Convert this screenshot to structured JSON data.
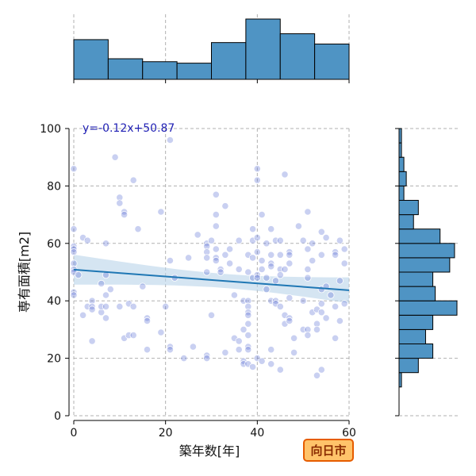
{
  "chart_data": {
    "type": "scatter",
    "xlabel": "築年数[年]",
    "ylabel": "専有面積[m2]",
    "xlim": [
      0,
      60
    ],
    "ylim": [
      0,
      100
    ],
    "xticks": [
      0,
      20,
      40,
      60
    ],
    "yticks": [
      0,
      20,
      40,
      60,
      80,
      100
    ],
    "grid": true,
    "regression": {
      "label": "y=-0.12x+50.87",
      "slope": -0.12,
      "intercept": 50.87
    },
    "badge": "向日市",
    "colors": {
      "point": "#5b6fd6",
      "regression": "#1f77b4",
      "ci_band": "#b9d3ea",
      "hist": "#4f94c4",
      "badge_fill": "#ffc36a",
      "badge_border": "#e65c00"
    },
    "points": [
      [
        0,
        86
      ],
      [
        0,
        65
      ],
      [
        0,
        59
      ],
      [
        0,
        58
      ],
      [
        0,
        57
      ],
      [
        0,
        53
      ],
      [
        0,
        51
      ],
      [
        0,
        50
      ],
      [
        0,
        43
      ],
      [
        0,
        42
      ],
      [
        2,
        62
      ],
      [
        2,
        35
      ],
      [
        3,
        61
      ],
      [
        3,
        38
      ],
      [
        4,
        40
      ],
      [
        4,
        38
      ],
      [
        4,
        37
      ],
      [
        4,
        26
      ],
      [
        6,
        46
      ],
      [
        6,
        36
      ],
      [
        6,
        38
      ],
      [
        7,
        60
      ],
      [
        7,
        49
      ],
      [
        7,
        42
      ],
      [
        7,
        38
      ],
      [
        7,
        34
      ],
      [
        9,
        90
      ],
      [
        10,
        76
      ],
      [
        10,
        74
      ],
      [
        10,
        38
      ],
      [
        11,
        71
      ],
      [
        11,
        70
      ],
      [
        11,
        27
      ],
      [
        12,
        39
      ],
      [
        12,
        28
      ],
      [
        13,
        82
      ],
      [
        13,
        38
      ],
      [
        13,
        28
      ],
      [
        14,
        65
      ],
      [
        16,
        34
      ],
      [
        16,
        33
      ],
      [
        16,
        23
      ],
      [
        19,
        71
      ],
      [
        19,
        29
      ],
      [
        20,
        38
      ],
      [
        21,
        96
      ],
      [
        21,
        54
      ],
      [
        21,
        24
      ],
      [
        21,
        23
      ],
      [
        24,
        20
      ],
      [
        26,
        24
      ],
      [
        29,
        60
      ],
      [
        29,
        59
      ],
      [
        29,
        57
      ],
      [
        29,
        55
      ],
      [
        29,
        50
      ],
      [
        29,
        21
      ],
      [
        29,
        20
      ],
      [
        30,
        61
      ],
      [
        30,
        35
      ],
      [
        31,
        77
      ],
      [
        31,
        70
      ],
      [
        31,
        66
      ],
      [
        31,
        58
      ],
      [
        31,
        55
      ],
      [
        31,
        54
      ],
      [
        32,
        51
      ],
      [
        32,
        50
      ],
      [
        33,
        73
      ],
      [
        33,
        56
      ],
      [
        33,
        22
      ],
      [
        34,
        53
      ],
      [
        35,
        27
      ],
      [
        36,
        61
      ],
      [
        36,
        51
      ],
      [
        36,
        26
      ],
      [
        36,
        23
      ],
      [
        37,
        40
      ],
      [
        37,
        30
      ],
      [
        37,
        19
      ],
      [
        37,
        18
      ],
      [
        38,
        56
      ],
      [
        38,
        50
      ],
      [
        38,
        40
      ],
      [
        38,
        38
      ],
      [
        38,
        36
      ],
      [
        38,
        35
      ],
      [
        38,
        32
      ],
      [
        38,
        28
      ],
      [
        38,
        24
      ],
      [
        38,
        23
      ],
      [
        38,
        18
      ],
      [
        39,
        65
      ],
      [
        39,
        61
      ],
      [
        39,
        55
      ],
      [
        39,
        48
      ],
      [
        39,
        17
      ],
      [
        40,
        86
      ],
      [
        40,
        82
      ],
      [
        40,
        62
      ],
      [
        40,
        57
      ],
      [
        40,
        49
      ],
      [
        40,
        48
      ],
      [
        40,
        20
      ],
      [
        41,
        70
      ],
      [
        41,
        54
      ],
      [
        41,
        51
      ],
      [
        41,
        19
      ],
      [
        42,
        60
      ],
      [
        42,
        48
      ],
      [
        43,
        65
      ],
      [
        43,
        56
      ],
      [
        43,
        53
      ],
      [
        43,
        52
      ],
      [
        43,
        40
      ],
      [
        43,
        23
      ],
      [
        43,
        18
      ],
      [
        44,
        61
      ],
      [
        44,
        40
      ],
      [
        44,
        39
      ],
      [
        45,
        61
      ],
      [
        45,
        56
      ],
      [
        45,
        51
      ],
      [
        45,
        49
      ],
      [
        45,
        38
      ],
      [
        45,
        16
      ],
      [
        46,
        84
      ],
      [
        46,
        51
      ],
      [
        46,
        35
      ],
      [
        46,
        32
      ],
      [
        47,
        57
      ],
      [
        47,
        56
      ],
      [
        47,
        53
      ],
      [
        47,
        41
      ],
      [
        47,
        34
      ],
      [
        47,
        33
      ],
      [
        48,
        27
      ],
      [
        48,
        22
      ],
      [
        50,
        61
      ],
      [
        50,
        40
      ],
      [
        50,
        30
      ],
      [
        51,
        71
      ],
      [
        51,
        58
      ],
      [
        51,
        51
      ],
      [
        51,
        48
      ],
      [
        51,
        30
      ],
      [
        51,
        28
      ],
      [
        52,
        54
      ],
      [
        52,
        36
      ],
      [
        53,
        37
      ],
      [
        53,
        32
      ],
      [
        53,
        30
      ],
      [
        53,
        14
      ],
      [
        54,
        64
      ],
      [
        54,
        56
      ],
      [
        54,
        44
      ],
      [
        54,
        39
      ],
      [
        54,
        36
      ],
      [
        54,
        16
      ],
      [
        55,
        45
      ],
      [
        55,
        34
      ],
      [
        57,
        57
      ],
      [
        57,
        56
      ],
      [
        57,
        38
      ],
      [
        57,
        27
      ],
      [
        58,
        61
      ],
      [
        58,
        33
      ],
      [
        59,
        53
      ],
      [
        59,
        58
      ],
      [
        59,
        39
      ],
      [
        1,
        49
      ],
      [
        8,
        44
      ],
      [
        15,
        45
      ],
      [
        22,
        48
      ],
      [
        25,
        55
      ],
      [
        27,
        63
      ],
      [
        34,
        58
      ],
      [
        35,
        42
      ],
      [
        42,
        44
      ],
      [
        44,
        47
      ],
      [
        49,
        66
      ],
      [
        52,
        60
      ],
      [
        55,
        62
      ],
      [
        56,
        42
      ],
      [
        58,
        47
      ]
    ]
  }
}
